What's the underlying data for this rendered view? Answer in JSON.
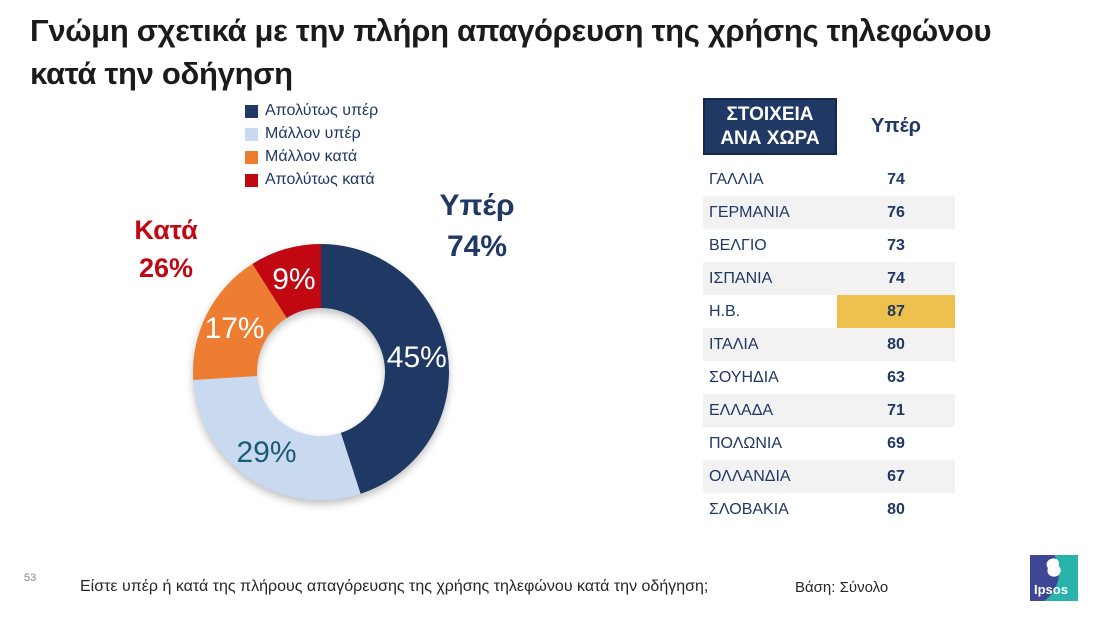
{
  "title": "Γνώμη σχετικά με την πλήρη απαγόρευση της χρήσης τηλεφώνου κατά την οδήγηση",
  "chart_data": [
    {
      "type": "pie",
      "donut": true,
      "direction": "clockwise",
      "start_angle_deg": 0,
      "legend_position": "top",
      "segments": [
        {
          "label": "Απολύτως υπέρ",
          "value": 45,
          "color": "#1F3864",
          "label_color": "#FFFFFF"
        },
        {
          "label": "Μάλλον υπέρ",
          "value": 29,
          "color": "#C9DAF0",
          "label_color": "#1B5A78"
        },
        {
          "label": "Μάλλον κατά",
          "value": 17,
          "color": "#ED7D31",
          "label_color": "#FFFFFF"
        },
        {
          "label": "Απολύτως κατά",
          "value": 9,
          "color": "#C00712",
          "label_color": "#FFFFFF"
        }
      ],
      "annotations": [
        {
          "label": "Υπέρ",
          "value": "74%",
          "color": "#1F3864",
          "position": "right"
        },
        {
          "label": "Κατά",
          "value": "26%",
          "color": "#C00712",
          "position": "left"
        }
      ]
    },
    {
      "type": "table",
      "header": [
        "ΣΤΟΙΧΕΙΑ ΑΝΑ ΧΩΡΑ",
        "Υπέρ"
      ],
      "rows": [
        [
          "ΓΑΛΛΙΑ",
          74
        ],
        [
          "ΓΕΡΜΑΝΙΑ",
          76
        ],
        [
          "ΒΕΛΓΙΟ",
          73
        ],
        [
          "ΙΣΠΑΝΙΑ",
          74
        ],
        [
          "Η.Β.",
          87
        ],
        [
          "ΙΤΑΛΙΑ",
          80
        ],
        [
          "ΣΟΥΗΔΙΑ",
          63
        ],
        [
          "ΕΛΛΑΔΑ",
          71
        ],
        [
          "ΠΟΛΩΝΙΑ",
          69
        ],
        [
          "ΟΛΛΑΝΔΙΑ",
          67
        ],
        [
          "ΣΛΟΒΑΚΙΑ",
          80
        ]
      ],
      "highlighted_row": "Η.Β.",
      "highlight_color": "#EEC04E"
    }
  ],
  "footer": {
    "page_number": "53",
    "question": "Είστε υπέρ ή κατά της πλήρους απαγόρευσης της χρήσης τηλεφώνου κατά την οδήγηση;",
    "base": "Βάση: Σύνολο",
    "logo_text": "Ipsos"
  },
  "brand_colors": {
    "logo_blue": "#3D4795",
    "logo_teal": "#29B3AB"
  }
}
